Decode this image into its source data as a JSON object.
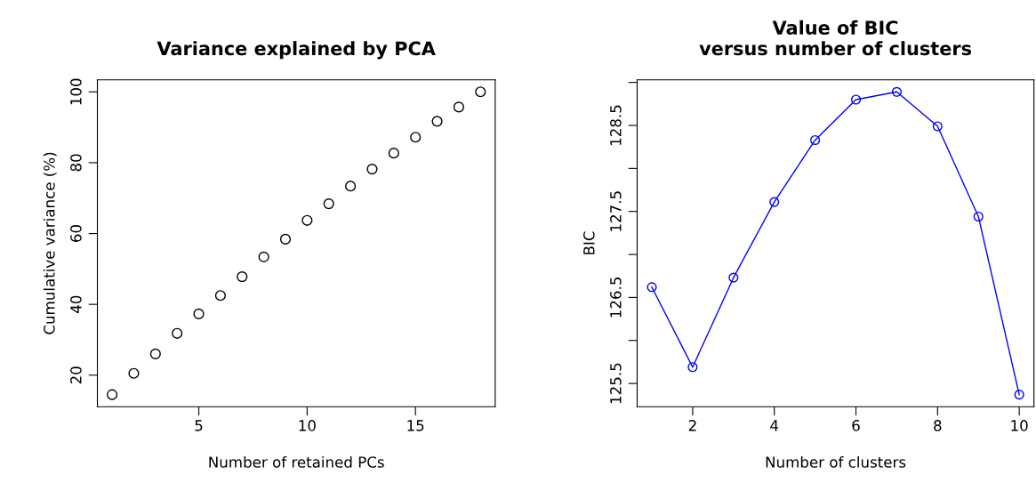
{
  "chart_data": [
    {
      "type": "scatter",
      "title": "Variance explained by PCA",
      "xlabel": "Number of retained PCs",
      "ylabel": "Cumulative variance (%)",
      "x": [
        1,
        2,
        3,
        4,
        5,
        6,
        7,
        8,
        9,
        10,
        11,
        12,
        13,
        14,
        15,
        16,
        17,
        18
      ],
      "series": [
        {
          "color": "#000000",
          "values": [
            14.5,
            20.5,
            26,
            31.8,
            37.3,
            42.5,
            47.8,
            53.4,
            58.4,
            63.7,
            68.4,
            73.4,
            78.2,
            82.7,
            87.2,
            91.7,
            95.7,
            100
          ]
        }
      ],
      "xlim": [
        0.32,
        18.68
      ],
      "ylim": [
        11.1,
        103.4
      ],
      "xticks": [
        5,
        10,
        15
      ],
      "yticks": [
        20,
        40,
        60,
        80,
        100
      ],
      "marker": "circle",
      "grid": false,
      "legend": false
    },
    {
      "type": "line",
      "title": "Value of BIC\nversus number of clusters",
      "xlabel": "Number of clusters",
      "ylabel": "BIC",
      "x": [
        1,
        2,
        3,
        4,
        5,
        6,
        7,
        8,
        9,
        10
      ],
      "series": [
        {
          "color": "#0000ff",
          "values": [
            126.62,
            125.69,
            126.73,
            127.61,
            128.33,
            128.8,
            128.89,
            128.49,
            127.44,
            125.37
          ]
        }
      ],
      "xlim": [
        0.64,
        10.36
      ],
      "ylim": [
        125.23,
        129.03
      ],
      "xticks": [
        2,
        4,
        6,
        8,
        10
      ],
      "yticks": [
        125.5,
        {
          "value": 126,
          "label": null
        },
        126.5,
        {
          "value": 127,
          "label": null
        },
        127.5,
        {
          "value": 128,
          "label": null
        },
        128.5,
        {
          "value": 129,
          "label": null
        }
      ],
      "marker": "circle",
      "line_style": "solid",
      "grid": false,
      "legend": false
    }
  ]
}
